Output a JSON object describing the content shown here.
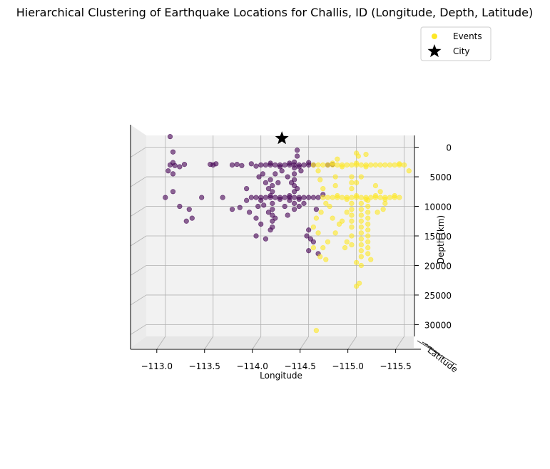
{
  "chart_data": {
    "type": "scatter",
    "projection": "3d",
    "title": "Hierarchical Clustering of Earthquake Locations for Challis, ID (Longitude, Depth, Latitude)",
    "xlabel": "Longitude",
    "ylabel": "Depth (km)",
    "zlabel": "Latitude",
    "xlim": [
      -112.8,
      -115.6
    ],
    "ylim": [
      -32000,
      2000
    ],
    "x_ticks": [
      -113.0,
      -113.5,
      -114.0,
      -114.5,
      -115.0,
      -115.5
    ],
    "x_tick_labels": [
      "−113.0",
      "−113.5",
      "−114.0",
      "−114.5",
      "−115.0",
      "−115.5"
    ],
    "y_ticks": [
      0,
      -5000,
      -10000,
      -15000,
      -20000,
      -25000,
      -30000
    ],
    "y_tick_labels": [
      "0",
      "5000",
      "10000",
      "15000",
      "20000",
      "25000",
      "30000"
    ],
    "grid": true,
    "legend": {
      "placement": "top-right",
      "entries": [
        {
          "label": "Events",
          "marker": "circle",
          "color": "#fde725"
        },
        {
          "label": "City",
          "marker": "star",
          "color": "#000000"
        }
      ]
    },
    "colors": {
      "cluster_0": "#440154",
      "cluster_1": "#fde725",
      "pane": "#f2f2f2",
      "grid": "#b0b0b0",
      "city": "#000000"
    },
    "city": {
      "x": -114.22,
      "y": 1500
    },
    "series": [
      {
        "cluster": 0,
        "points": [
          [
            -113.05,
            -3000
          ],
          [
            -113.08,
            -2600
          ],
          [
            -113.1,
            -3100
          ],
          [
            -113.15,
            -3300
          ],
          [
            -113.2,
            -2900
          ],
          [
            -113.03,
            -4000
          ],
          [
            -113.08,
            -4500
          ],
          [
            -113.05,
            1800
          ],
          [
            -113.08,
            -800
          ],
          [
            -113.0,
            -8500
          ],
          [
            -113.08,
            -7500
          ],
          [
            -113.15,
            -10000
          ],
          [
            -113.22,
            -12500
          ],
          [
            -113.28,
            -12000
          ],
          [
            -113.25,
            -10500
          ],
          [
            -113.38,
            -8500
          ],
          [
            -113.5,
            -3000
          ],
          [
            -113.53,
            -2800
          ],
          [
            -113.47,
            -2900
          ],
          [
            -113.6,
            -8500
          ],
          [
            -113.7,
            -10500
          ],
          [
            -113.7,
            -3000
          ],
          [
            -113.75,
            -2900
          ],
          [
            -113.8,
            -3100
          ],
          [
            -113.85,
            -9000
          ],
          [
            -113.9,
            -2800
          ],
          [
            -113.95,
            -3200
          ],
          [
            -113.97,
            -10000
          ],
          [
            -114.0,
            -3000
          ],
          [
            -114.05,
            -3000
          ],
          [
            -114.1,
            -3000
          ],
          [
            -114.15,
            -3000
          ],
          [
            -114.2,
            -3000
          ],
          [
            -114.25,
            -3000
          ],
          [
            -114.3,
            -3000
          ],
          [
            -114.35,
            -3000
          ],
          [
            -114.4,
            -3000
          ],
          [
            -114.45,
            -3000
          ],
          [
            -114.5,
            -3000
          ],
          [
            -114.55,
            -3000
          ],
          [
            -114.1,
            -2700
          ],
          [
            -114.2,
            -3300
          ],
          [
            -114.3,
            -2700
          ],
          [
            -114.4,
            -3300
          ],
          [
            -114.5,
            -2600
          ],
          [
            -113.9,
            -8500
          ],
          [
            -113.95,
            -8500
          ],
          [
            -114.0,
            -8500
          ],
          [
            -114.05,
            -8500
          ],
          [
            -114.1,
            -8500
          ],
          [
            -114.15,
            -8500
          ],
          [
            -114.2,
            -8500
          ],
          [
            -114.25,
            -8500
          ],
          [
            -114.3,
            -8500
          ],
          [
            -114.35,
            -8500
          ],
          [
            -114.4,
            -8500
          ],
          [
            -114.45,
            -8500
          ],
          [
            -114.5,
            -8500
          ],
          [
            -114.55,
            -8500
          ],
          [
            -114.6,
            -8500
          ],
          [
            -114.1,
            -8200
          ],
          [
            -114.2,
            -8800
          ],
          [
            -114.3,
            -8200
          ],
          [
            -114.4,
            -8800
          ],
          [
            -114.0,
            -9000
          ],
          [
            -114.12,
            -6500
          ],
          [
            -114.12,
            -7500
          ],
          [
            -114.12,
            -9500
          ],
          [
            -114.12,
            -10500
          ],
          [
            -114.12,
            -11500
          ],
          [
            -114.12,
            -12500
          ],
          [
            -114.12,
            -13500
          ],
          [
            -114.1,
            -5500
          ],
          [
            -114.15,
            -4500
          ],
          [
            -114.08,
            -11000
          ],
          [
            -114.15,
            -12000
          ],
          [
            -114.1,
            -14000
          ],
          [
            -114.05,
            -15500
          ],
          [
            -113.95,
            -15000
          ],
          [
            -114.0,
            -13000
          ],
          [
            -114.08,
            -7000
          ],
          [
            -114.18,
            -6000
          ],
          [
            -114.05,
            -6000
          ],
          [
            -113.98,
            -5000
          ],
          [
            -114.03,
            -9800
          ],
          [
            -114.38,
            -1500
          ],
          [
            -114.35,
            -2500
          ],
          [
            -114.35,
            -3500
          ],
          [
            -114.35,
            -4500
          ],
          [
            -114.35,
            -5500
          ],
          [
            -114.35,
            -6500
          ],
          [
            -114.35,
            -7500
          ],
          [
            -114.35,
            -9500
          ],
          [
            -114.35,
            -10500
          ],
          [
            -114.32,
            -6000
          ],
          [
            -114.38,
            -7000
          ],
          [
            -114.3,
            -9000
          ],
          [
            -114.4,
            -10000
          ],
          [
            -114.45,
            -9500
          ],
          [
            -114.42,
            -4000
          ],
          [
            -114.38,
            -500
          ],
          [
            -114.5,
            -14000
          ],
          [
            -114.52,
            -15500
          ],
          [
            -114.55,
            -16000
          ],
          [
            -114.5,
            -17500
          ],
          [
            -114.48,
            -15000
          ],
          [
            -114.6,
            -18000
          ],
          [
            -114.58,
            -10500
          ],
          [
            -114.65,
            -8000
          ],
          [
            -114.7,
            -3000
          ],
          [
            -114.75,
            -2900
          ],
          [
            -113.95,
            -12000
          ],
          [
            -113.88,
            -11000
          ],
          [
            -113.78,
            -10200
          ],
          [
            -113.85,
            -7000
          ],
          [
            -114.25,
            -10000
          ],
          [
            -114.28,
            -11500
          ],
          [
            -114.22,
            -4000
          ],
          [
            -114.28,
            -5000
          ],
          [
            -114.02,
            -4500
          ]
        ]
      },
      {
        "cluster": 1,
        "points": [
          [
            -114.55,
            -3000
          ],
          [
            -114.6,
            -3000
          ],
          [
            -114.65,
            -3000
          ],
          [
            -114.7,
            -3000
          ],
          [
            -114.75,
            -3000
          ],
          [
            -114.8,
            -3000
          ],
          [
            -114.85,
            -3000
          ],
          [
            -114.9,
            -3000
          ],
          [
            -114.95,
            -3000
          ],
          [
            -115.0,
            -3000
          ],
          [
            -115.05,
            -3000
          ],
          [
            -115.1,
            -3000
          ],
          [
            -115.15,
            -3000
          ],
          [
            -115.2,
            -3000
          ],
          [
            -115.25,
            -3000
          ],
          [
            -115.3,
            -3000
          ],
          [
            -115.35,
            -3000
          ],
          [
            -115.4,
            -3000
          ],
          [
            -115.45,
            -3000
          ],
          [
            -115.5,
            -3000
          ],
          [
            -115.55,
            -4000
          ],
          [
            -114.75,
            -2700
          ],
          [
            -114.85,
            -3300
          ],
          [
            -115.0,
            -2700
          ],
          [
            -115.1,
            -3300
          ],
          [
            -115.45,
            -2800
          ],
          [
            -114.65,
            -8500
          ],
          [
            -114.7,
            -8500
          ],
          [
            -114.75,
            -8500
          ],
          [
            -114.8,
            -8500
          ],
          [
            -114.85,
            -8500
          ],
          [
            -114.9,
            -8500
          ],
          [
            -114.95,
            -8500
          ],
          [
            -115.0,
            -8500
          ],
          [
            -115.05,
            -8500
          ],
          [
            -115.1,
            -8500
          ],
          [
            -115.15,
            -8500
          ],
          [
            -115.2,
            -8500
          ],
          [
            -115.25,
            -8500
          ],
          [
            -115.3,
            -8500
          ],
          [
            -115.35,
            -8500
          ],
          [
            -115.4,
            -8500
          ],
          [
            -115.45,
            -8500
          ],
          [
            -114.8,
            -8200
          ],
          [
            -114.9,
            -8800
          ],
          [
            -115.0,
            -8200
          ],
          [
            -115.1,
            -8800
          ],
          [
            -115.2,
            -8200
          ],
          [
            -115.3,
            -8800
          ],
          [
            -115.4,
            -8200
          ],
          [
            -114.95,
            -5000
          ],
          [
            -114.95,
            -6000
          ],
          [
            -114.95,
            -7000
          ],
          [
            -114.95,
            -9500
          ],
          [
            -114.95,
            -10500
          ],
          [
            -114.95,
            -11500
          ],
          [
            -114.95,
            -12500
          ],
          [
            -114.95,
            -13500
          ],
          [
            -114.95,
            -15000
          ],
          [
            -114.95,
            -16500
          ],
          [
            -115.05,
            -9500
          ],
          [
            -115.05,
            -10500
          ],
          [
            -115.05,
            -11500
          ],
          [
            -115.05,
            -12500
          ],
          [
            -115.05,
            -13500
          ],
          [
            -115.05,
            -14500
          ],
          [
            -115.05,
            -15500
          ],
          [
            -115.05,
            -16500
          ],
          [
            -115.05,
            -17500
          ],
          [
            -115.05,
            -18500
          ],
          [
            -115.12,
            -9000
          ],
          [
            -115.12,
            -10000
          ],
          [
            -115.12,
            -11000
          ],
          [
            -115.12,
            -12000
          ],
          [
            -115.12,
            -13000
          ],
          [
            -115.12,
            -14000
          ],
          [
            -115.12,
            -15000
          ],
          [
            -115.12,
            -16000
          ],
          [
            -115.12,
            -17000
          ],
          [
            -115.12,
            -18000
          ],
          [
            -115.0,
            -1000
          ],
          [
            -115.02,
            -1500
          ],
          [
            -115.1,
            -1200
          ],
          [
            -115.05,
            -5000
          ],
          [
            -115.0,
            -6000
          ],
          [
            -114.9,
            -11000
          ],
          [
            -114.85,
            -12500
          ],
          [
            -114.82,
            -13000
          ],
          [
            -114.78,
            -14500
          ],
          [
            -114.9,
            -16000
          ],
          [
            -114.88,
            -17000
          ],
          [
            -115.0,
            -19500
          ],
          [
            -115.05,
            -20000
          ],
          [
            -115.0,
            -23500
          ],
          [
            -115.03,
            -23000
          ],
          [
            -114.6,
            -4000
          ],
          [
            -114.62,
            -5500
          ],
          [
            -114.65,
            -7000
          ],
          [
            -114.68,
            -9500
          ],
          [
            -114.63,
            -11000
          ],
          [
            -114.58,
            -12000
          ],
          [
            -114.55,
            -13500
          ],
          [
            -114.6,
            -14500
          ],
          [
            -114.65,
            -17000
          ],
          [
            -114.68,
            -19000
          ],
          [
            -114.72,
            -10000
          ],
          [
            -114.75,
            -12000
          ],
          [
            -114.7,
            -16000
          ],
          [
            -114.55,
            -17000
          ],
          [
            -114.62,
            -18500
          ],
          [
            -115.2,
            -6500
          ],
          [
            -115.25,
            -7500
          ],
          [
            -115.3,
            -9500
          ],
          [
            -115.22,
            -11000
          ],
          [
            -115.28,
            -10500
          ],
          [
            -114.78,
            -5000
          ],
          [
            -114.78,
            -6500
          ],
          [
            -114.8,
            -2000
          ],
          [
            -114.58,
            -31000
          ],
          [
            -115.15,
            -19000
          ]
        ]
      }
    ]
  }
}
